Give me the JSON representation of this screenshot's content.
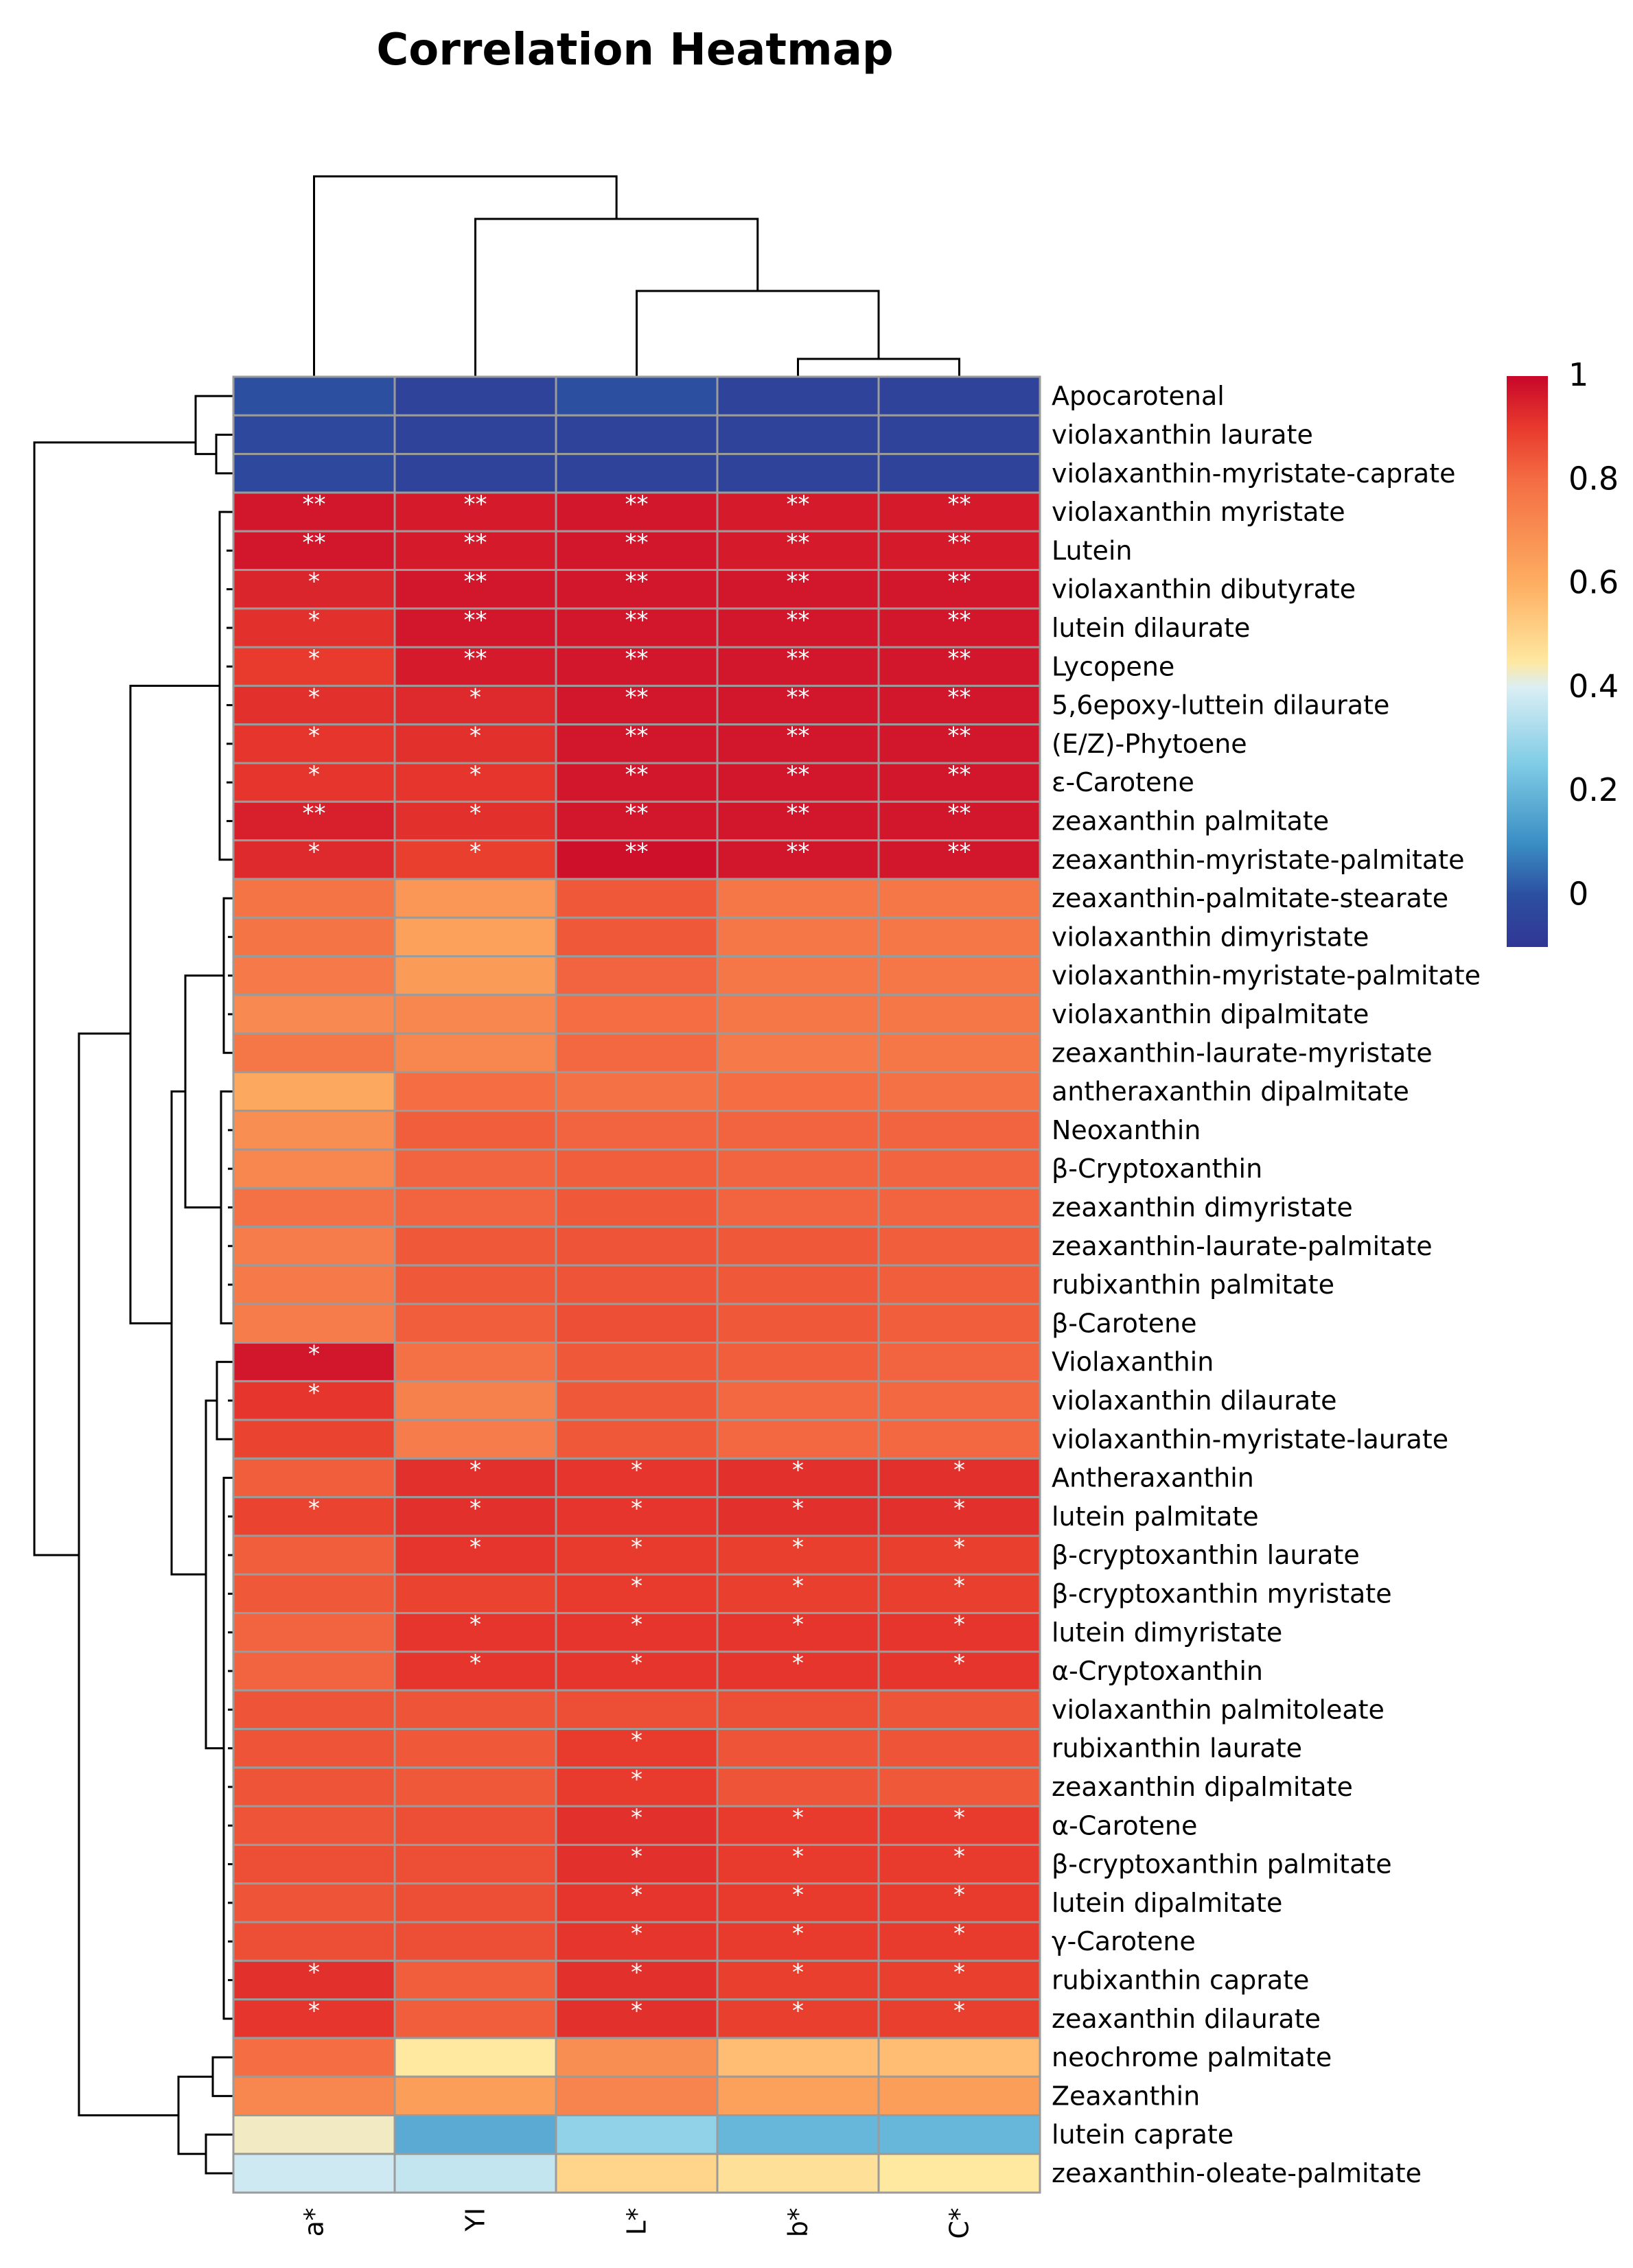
{
  "title": "Correlation Heatmap",
  "chart_data": {
    "type": "heatmap",
    "title": "Correlation Heatmap",
    "columns": [
      "a*",
      "YI",
      "L*",
      "b*",
      "C*"
    ],
    "rows": [
      "Apocarotenal",
      "violaxanthin laurate",
      "violaxanthin-myristate-caprate",
      "violaxanthin myristate",
      "Lutein",
      "violaxanthin dibutyrate",
      "lutein dilaurate",
      "Lycopene",
      "5,6epoxy-luttein dilaurate",
      "(E/Z)-Phytoene",
      "ε-Carotene",
      "zeaxanthin palmitate",
      "zeaxanthin-myristate-palmitate",
      "zeaxanthin-palmitate-stearate",
      "violaxanthin dimyristate",
      "violaxanthin-myristate-palmitate",
      "violaxanthin dipalmitate",
      "zeaxanthin-laurate-myristate",
      "antheraxanthin dipalmitate",
      "Neoxanthin",
      "β-Cryptoxanthin",
      "zeaxanthin dimyristate",
      "zeaxanthin-laurate-palmitate",
      "rubixanthin palmitate",
      "β-Carotene",
      "Violaxanthin",
      "violaxanthin dilaurate",
      "violaxanthin-myristate-laurate",
      "Antheraxanthin",
      "lutein palmitate",
      "β-cryptoxanthin laurate",
      "β-cryptoxanthin myristate",
      "lutein dimyristate",
      "α-Cryptoxanthin",
      "violaxanthin palmitoleate",
      "rubixanthin laurate",
      "zeaxanthin dipalmitate",
      "α-Carotene",
      "β-cryptoxanthin palmitate",
      "lutein dipalmitate",
      "γ-Carotene",
      "rubixanthin caprate",
      "zeaxanthin dilaurate",
      "neochrome palmitate",
      "Zeaxanthin",
      "lutein caprate",
      "zeaxanthin-oleate-palmitate"
    ],
    "values": [
      [
        0.0,
        -0.05,
        0.0,
        -0.05,
        -0.05
      ],
      [
        -0.03,
        -0.05,
        -0.05,
        -0.05,
        -0.05
      ],
      [
        -0.03,
        -0.05,
        -0.05,
        -0.05,
        -0.05
      ],
      [
        0.97,
        0.96,
        0.97,
        0.96,
        0.96
      ],
      [
        0.97,
        0.96,
        0.97,
        0.96,
        0.96
      ],
      [
        0.94,
        0.97,
        0.97,
        0.97,
        0.97
      ],
      [
        0.92,
        0.97,
        0.97,
        0.97,
        0.97
      ],
      [
        0.9,
        0.96,
        0.97,
        0.97,
        0.97
      ],
      [
        0.92,
        0.93,
        0.97,
        0.97,
        0.97
      ],
      [
        0.91,
        0.92,
        0.97,
        0.97,
        0.97
      ],
      [
        0.91,
        0.91,
        0.97,
        0.97,
        0.97
      ],
      [
        0.95,
        0.92,
        0.97,
        0.97,
        0.97
      ],
      [
        0.93,
        0.89,
        0.98,
        0.97,
        0.97
      ],
      [
        0.78,
        0.67,
        0.84,
        0.77,
        0.77
      ],
      [
        0.78,
        0.64,
        0.84,
        0.77,
        0.77
      ],
      [
        0.76,
        0.66,
        0.82,
        0.77,
        0.77
      ],
      [
        0.71,
        0.72,
        0.8,
        0.77,
        0.77
      ],
      [
        0.77,
        0.72,
        0.81,
        0.76,
        0.77
      ],
      [
        0.62,
        0.8,
        0.79,
        0.8,
        0.79
      ],
      [
        0.7,
        0.83,
        0.82,
        0.82,
        0.82
      ],
      [
        0.72,
        0.82,
        0.83,
        0.82,
        0.82
      ],
      [
        0.79,
        0.82,
        0.84,
        0.82,
        0.82
      ],
      [
        0.75,
        0.84,
        0.85,
        0.84,
        0.83
      ],
      [
        0.76,
        0.84,
        0.85,
        0.84,
        0.83
      ],
      [
        0.75,
        0.83,
        0.86,
        0.84,
        0.83
      ],
      [
        0.97,
        0.79,
        0.84,
        0.83,
        0.82
      ],
      [
        0.91,
        0.74,
        0.84,
        0.81,
        0.81
      ],
      [
        0.88,
        0.75,
        0.84,
        0.81,
        0.81
      ],
      [
        0.83,
        0.92,
        0.91,
        0.92,
        0.92
      ],
      [
        0.88,
        0.92,
        0.91,
        0.92,
        0.92
      ],
      [
        0.83,
        0.91,
        0.9,
        0.89,
        0.89
      ],
      [
        0.84,
        0.88,
        0.9,
        0.89,
        0.89
      ],
      [
        0.82,
        0.91,
        0.91,
        0.91,
        0.91
      ],
      [
        0.82,
        0.91,
        0.91,
        0.91,
        0.91
      ],
      [
        0.85,
        0.85,
        0.86,
        0.86,
        0.85
      ],
      [
        0.85,
        0.84,
        0.9,
        0.85,
        0.85
      ],
      [
        0.85,
        0.84,
        0.9,
        0.85,
        0.84
      ],
      [
        0.85,
        0.86,
        0.92,
        0.9,
        0.9
      ],
      [
        0.86,
        0.86,
        0.92,
        0.9,
        0.9
      ],
      [
        0.85,
        0.86,
        0.91,
        0.9,
        0.9
      ],
      [
        0.86,
        0.86,
        0.91,
        0.9,
        0.9
      ],
      [
        0.92,
        0.83,
        0.92,
        0.89,
        0.89
      ],
      [
        0.91,
        0.83,
        0.92,
        0.89,
        0.89
      ],
      [
        0.8,
        0.45,
        0.7,
        0.56,
        0.56
      ],
      [
        0.72,
        0.65,
        0.73,
        0.64,
        0.65
      ],
      [
        0.43,
        0.17,
        0.28,
        0.2,
        0.2
      ],
      [
        0.38,
        0.36,
        0.5,
        0.47,
        0.45
      ]
    ],
    "significance": [
      [
        "",
        "",
        "",
        "",
        ""
      ],
      [
        "",
        "",
        "",
        "",
        ""
      ],
      [
        "",
        "",
        "",
        "",
        ""
      ],
      [
        "**",
        "**",
        "**",
        "**",
        "**"
      ],
      [
        "**",
        "**",
        "**",
        "**",
        "**"
      ],
      [
        "*",
        "**",
        "**",
        "**",
        "**"
      ],
      [
        "*",
        "**",
        "**",
        "**",
        "**"
      ],
      [
        "*",
        "**",
        "**",
        "**",
        "**"
      ],
      [
        "*",
        "*",
        "**",
        "**",
        "**"
      ],
      [
        "*",
        "*",
        "**",
        "**",
        "**"
      ],
      [
        "*",
        "*",
        "**",
        "**",
        "**"
      ],
      [
        "**",
        "*",
        "**",
        "**",
        "**"
      ],
      [
        "*",
        "*",
        "**",
        "**",
        "**"
      ],
      [
        "",
        "",
        "",
        "",
        ""
      ],
      [
        "",
        "",
        "",
        "",
        ""
      ],
      [
        "",
        "",
        "",
        "",
        ""
      ],
      [
        "",
        "",
        "",
        "",
        ""
      ],
      [
        "",
        "",
        "",
        "",
        ""
      ],
      [
        "",
        "",
        "",
        "",
        ""
      ],
      [
        "",
        "",
        "",
        "",
        ""
      ],
      [
        "",
        "",
        "",
        "",
        ""
      ],
      [
        "",
        "",
        "",
        "",
        ""
      ],
      [
        "",
        "",
        "",
        "",
        ""
      ],
      [
        "",
        "",
        "",
        "",
        ""
      ],
      [
        "",
        "",
        "",
        "",
        ""
      ],
      [
        "*",
        "",
        "",
        "",
        ""
      ],
      [
        "*",
        "",
        "",
        "",
        ""
      ],
      [
        "",
        "",
        "",
        "",
        ""
      ],
      [
        "",
        "*",
        "*",
        "*",
        "*"
      ],
      [
        "*",
        "*",
        "*",
        "*",
        "*"
      ],
      [
        "",
        "*",
        "*",
        "*",
        "*"
      ],
      [
        "",
        "",
        "*",
        "*",
        "*"
      ],
      [
        "",
        "*",
        "*",
        "*",
        "*"
      ],
      [
        "",
        "*",
        "*",
        "*",
        "*"
      ],
      [
        "",
        "",
        "",
        "",
        ""
      ],
      [
        "",
        "",
        "*",
        "",
        ""
      ],
      [
        "",
        "",
        "*",
        "",
        ""
      ],
      [
        "",
        "",
        "*",
        "*",
        "*"
      ],
      [
        "",
        "",
        "*",
        "*",
        "*"
      ],
      [
        "",
        "",
        "*",
        "*",
        "*"
      ],
      [
        "",
        "",
        "*",
        "*",
        "*"
      ],
      [
        "*",
        "",
        "*",
        "*",
        "*"
      ],
      [
        "*",
        "",
        "*",
        "*",
        "*"
      ],
      [
        "",
        "",
        "",
        "",
        ""
      ],
      [
        "",
        "",
        "",
        "",
        ""
      ],
      [
        "",
        "",
        "",
        "",
        ""
      ],
      [
        "",
        "",
        "",
        "",
        ""
      ]
    ],
    "color_scale": {
      "min": -0.1,
      "max": 1.0,
      "ticks": [
        1,
        0.8,
        0.6,
        0.4,
        0.2,
        0
      ],
      "tick_labels": [
        "1",
        "0.8",
        "0.6",
        "0.4",
        "0.2",
        "0"
      ],
      "stops": [
        {
          "v": -0.1,
          "color": "#313695"
        },
        {
          "v": 0.0,
          "color": "#2c4fa0"
        },
        {
          "v": 0.1,
          "color": "#3a8ec4"
        },
        {
          "v": 0.25,
          "color": "#7ecbe5"
        },
        {
          "v": 0.4,
          "color": "#dbeef4"
        },
        {
          "v": 0.45,
          "color": "#ffe8a0"
        },
        {
          "v": 0.6,
          "color": "#fdae61"
        },
        {
          "v": 0.8,
          "color": "#f46d43"
        },
        {
          "v": 0.9,
          "color": "#e83a2d"
        },
        {
          "v": 1.0,
          "color": "#c8062a"
        }
      ]
    },
    "row_clusters": "hierarchical (left dendrogram)",
    "column_clusters": "hierarchical (top dendrogram)"
  }
}
